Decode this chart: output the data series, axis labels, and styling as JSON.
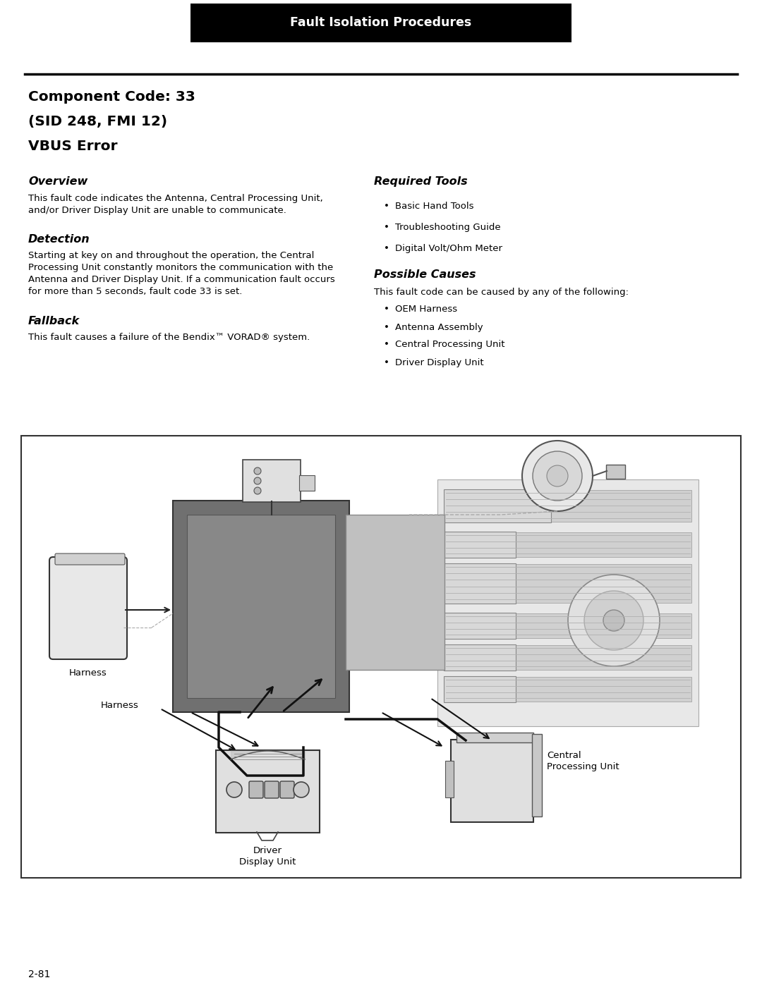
{
  "header_text": "Fault Isolation Procedures",
  "header_bg": "#000000",
  "header_text_color": "#ffffff",
  "title_line1": "Component Code: 33",
  "title_line2": "(SID 248, FMI 12)",
  "title_line3": "VBUS Error",
  "section1_heading": "Overview",
  "section1_body": "This fault code indicates the Antenna, Central Processing Unit,\nand/or Driver Display Unit are unable to communicate.",
  "section2_heading": "Detection",
  "section2_body": "Starting at key on and throughout the operation, the Central\nProcessing Unit constantly monitors the communication with the\nAntenna and Driver Display Unit. If a communication fault occurs\nfor more than 5 seconds, fault code 33 is set.",
  "section3_heading": "Fallback",
  "section3_body": "This fault causes a failure of the Bendix™ VORAD® system.",
  "section4_heading": "Required Tools",
  "section4_items": [
    "Basic Hand Tools",
    "Troubleshooting Guide",
    "Digital Volt/Ohm Meter"
  ],
  "section5_heading": "Possible Causes",
  "section5_intro": "This fault code can be caused by any of the following:",
  "section5_items": [
    "OEM Harness",
    "Antenna Assembly",
    "Central Processing Unit",
    "Driver Display Unit"
  ],
  "footer_text": "2-81",
  "page_bg": "#ffffff",
  "text_color": "#000000",
  "divider_color": "#000000"
}
